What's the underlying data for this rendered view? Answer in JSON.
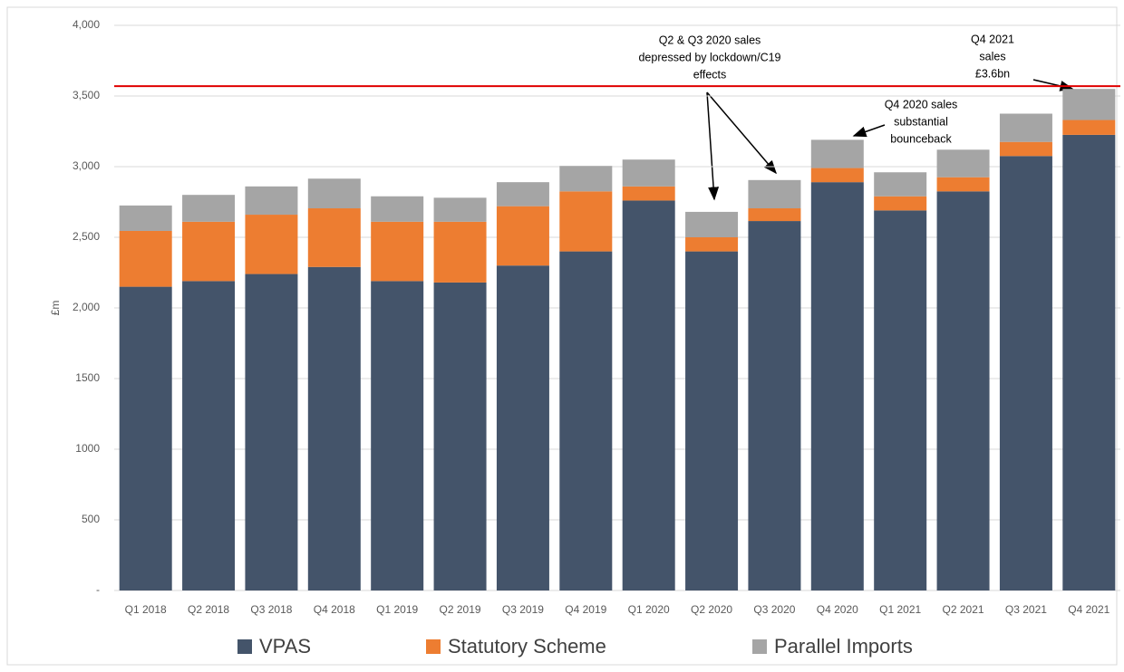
{
  "chart_data": {
    "type": "stacked_bar",
    "y_label": "£m",
    "categories": [
      "Q1 2018",
      "Q2 2018",
      "Q3 2018",
      "Q4 2018",
      "Q1 2019",
      "Q2 2019",
      "Q3 2019",
      "Q4 2019",
      "Q1 2020",
      "Q2 2020",
      "Q3 2020",
      "Q4 2020",
      "Q1 2021",
      "Q2 2021",
      "Q3 2021",
      "Q4 2021"
    ],
    "series": [
      {
        "name": "VPAS",
        "color": "#44546a",
        "values": [
          2150,
          2190,
          2240,
          2290,
          2190,
          2180,
          2300,
          2400,
          2760,
          2400,
          2615,
          2890,
          2690,
          2825,
          3075,
          3225
        ]
      },
      {
        "name": "Statutory Scheme",
        "color": "#ed7d31",
        "values": [
          395,
          420,
          420,
          415,
          420,
          430,
          420,
          425,
          100,
          100,
          90,
          100,
          100,
          100,
          100,
          105
        ]
      },
      {
        "name": "Parallel Imports",
        "color": "#a5a5a5",
        "values": [
          180,
          190,
          200,
          210,
          180,
          170,
          170,
          180,
          190,
          180,
          200,
          200,
          170,
          195,
          200,
          220
        ]
      }
    ],
    "reference_line": {
      "value": 3570,
      "color": "#e00000"
    },
    "ylim": [
      0,
      4000
    ],
    "yticks": [
      {
        "value": 0,
        "label": "-"
      },
      500,
      1000,
      1500,
      {
        "value": 2000,
        "label": "2,000"
      },
      {
        "value": 2500,
        "label": "2,500"
      },
      {
        "value": 3000,
        "label": "3,000"
      },
      {
        "value": 3500,
        "label": "3,500"
      },
      {
        "value": 4000,
        "label": "4,000"
      }
    ],
    "grid": true,
    "legend": "bottom",
    "annotations": [
      {
        "lines": [
          "Q2 & Q3 2020 sales",
          "depressed by lockdown/C19",
          "effects"
        ]
      },
      {
        "lines": [
          "Q4 2020 sales",
          "substantial",
          "bounceback"
        ]
      },
      {
        "lines": [
          "Q4 2021",
          "sales",
          "£3.6bn"
        ]
      }
    ]
  }
}
